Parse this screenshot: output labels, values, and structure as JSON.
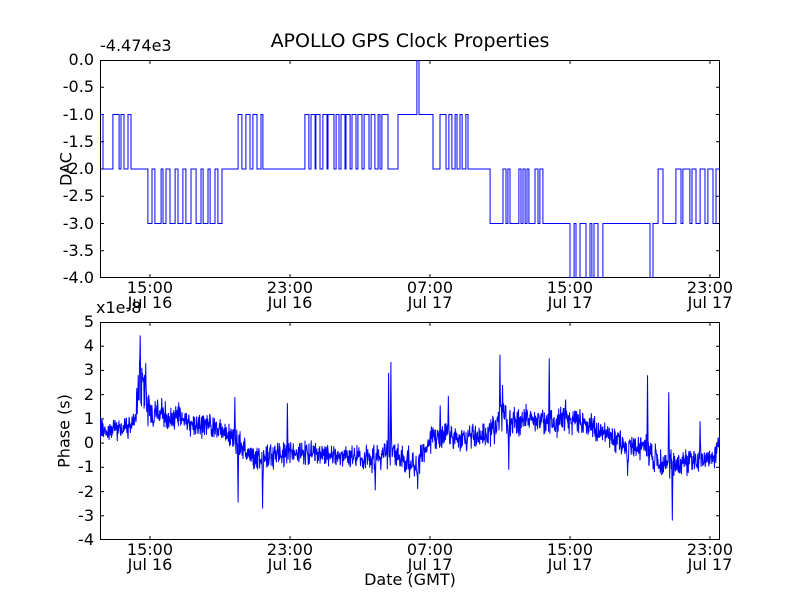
{
  "title": "APOLLO GPS Clock Properties",
  "colors": {
    "line": "#0000ff",
    "axes": "#000000",
    "background": "#ffffff"
  },
  "x_axis": {
    "label": "Date (GMT)",
    "span_hours": 35.43,
    "ticks": [
      {
        "hours": 2.857,
        "time": "15:00",
        "date": "Jul 16"
      },
      {
        "hours": 10.857,
        "time": "23:00",
        "date": "Jul 16"
      },
      {
        "hours": 18.857,
        "time": "07:00",
        "date": "Jul 17"
      },
      {
        "hours": 26.857,
        "time": "15:00",
        "date": "Jul 17"
      },
      {
        "hours": 34.857,
        "time": "23:00",
        "date": "Jul 17"
      }
    ]
  },
  "dac_plot": {
    "ylabel": "DAC",
    "offset_text": "-4.474e3",
    "ylim": [
      -4,
      0
    ],
    "ytick_labels": [
      "0.0",
      "-0.5",
      "-1.0",
      "-1.5",
      "-2.0",
      "-2.5",
      "-3.0",
      "-3.5",
      "-4.0"
    ]
  },
  "phase_plot": {
    "ylabel": "Phase (s)",
    "scale_text": "x1e-8",
    "ylim": [
      -4,
      5
    ],
    "ytick_labels": [
      "5",
      "4",
      "3",
      "2",
      "1",
      "0",
      "-1",
      "-2",
      "-3",
      "-4"
    ],
    "noise_seed": 123457
  },
  "chart_data": [
    {
      "type": "line",
      "series": "DAC",
      "color": "#0000ff",
      "y_offset_label": "-4.474e3",
      "ylim": [
        -4,
        0
      ],
      "x_unit": "hours from plot start (~12:09 Jul 16 GMT)",
      "steps": [
        [
          0,
          -1
        ],
        [
          0.17,
          -2
        ],
        [
          0.74,
          -1
        ],
        [
          1.09,
          -2
        ],
        [
          1.2,
          -1
        ],
        [
          1.37,
          -2
        ],
        [
          1.6,
          -1
        ],
        [
          1.77,
          -2
        ],
        [
          2.74,
          -3
        ],
        [
          2.97,
          -2
        ],
        [
          3.14,
          -3
        ],
        [
          3.49,
          -2
        ],
        [
          3.6,
          -3
        ],
        [
          3.77,
          -2
        ],
        [
          4,
          -3
        ],
        [
          4.29,
          -2
        ],
        [
          4.46,
          -3
        ],
        [
          4.74,
          -2
        ],
        [
          4.91,
          -3
        ],
        [
          5.2,
          -2
        ],
        [
          5.49,
          -3
        ],
        [
          5.77,
          -2
        ],
        [
          5.89,
          -3
        ],
        [
          6.17,
          -2
        ],
        [
          6.29,
          -3
        ],
        [
          6.57,
          -2
        ],
        [
          6.74,
          -3
        ],
        [
          6.97,
          -2
        ],
        [
          7.89,
          -1
        ],
        [
          8.11,
          -2
        ],
        [
          8.34,
          -1
        ],
        [
          8.57,
          -2
        ],
        [
          8.74,
          -1
        ],
        [
          8.97,
          -2
        ],
        [
          9.2,
          -1
        ],
        [
          9.31,
          -2
        ],
        [
          11.71,
          -1
        ],
        [
          11.94,
          -2
        ],
        [
          12.06,
          -1
        ],
        [
          12.29,
          -2
        ],
        [
          12.34,
          -1
        ],
        [
          12.57,
          -2
        ],
        [
          12.74,
          -1
        ],
        [
          12.97,
          -2
        ],
        [
          13.03,
          -1
        ],
        [
          13.37,
          -2
        ],
        [
          13.49,
          -1
        ],
        [
          13.66,
          -2
        ],
        [
          13.77,
          -1
        ],
        [
          14,
          -2
        ],
        [
          14.06,
          -1
        ],
        [
          14.29,
          -2
        ],
        [
          14.4,
          -1
        ],
        [
          14.63,
          -2
        ],
        [
          14.74,
          -1
        ],
        [
          14.97,
          -2
        ],
        [
          15.09,
          -1
        ],
        [
          15.37,
          -2
        ],
        [
          15.49,
          -1
        ],
        [
          15.71,
          -2
        ],
        [
          15.89,
          -1
        ],
        [
          16,
          -2
        ],
        [
          16.11,
          -1
        ],
        [
          16.46,
          -2
        ],
        [
          17.03,
          -1
        ],
        [
          18.11,
          0
        ],
        [
          18.23,
          -1
        ],
        [
          19.03,
          -2
        ],
        [
          19.43,
          -1
        ],
        [
          19.77,
          -2
        ],
        [
          19.94,
          -1
        ],
        [
          20.11,
          -2
        ],
        [
          20.29,
          -1
        ],
        [
          20.4,
          -2
        ],
        [
          20.57,
          -1
        ],
        [
          20.69,
          -2
        ],
        [
          20.91,
          -1
        ],
        [
          21.03,
          -2
        ],
        [
          22.29,
          -3
        ],
        [
          23.03,
          -2
        ],
        [
          23.2,
          -3
        ],
        [
          23.31,
          -2
        ],
        [
          23.43,
          -3
        ],
        [
          23.94,
          -2
        ],
        [
          24.06,
          -3
        ],
        [
          24.17,
          -2
        ],
        [
          24.29,
          -3
        ],
        [
          24.4,
          -2
        ],
        [
          24.51,
          -3
        ],
        [
          24.86,
          -2
        ],
        [
          25.03,
          -3
        ],
        [
          25.14,
          -2
        ],
        [
          25.31,
          -3
        ],
        [
          26.86,
          -4
        ],
        [
          27.09,
          -3
        ],
        [
          27.2,
          -4
        ],
        [
          27.43,
          -3
        ],
        [
          27.77,
          -4
        ],
        [
          28,
          -3
        ],
        [
          28.11,
          -4
        ],
        [
          28.23,
          -3
        ],
        [
          28.46,
          -4
        ],
        [
          28.74,
          -3
        ],
        [
          31.43,
          -4
        ],
        [
          31.6,
          -3
        ],
        [
          31.89,
          -2
        ],
        [
          32.17,
          -3
        ],
        [
          32.91,
          -2
        ],
        [
          33.2,
          -3
        ],
        [
          33.31,
          -2
        ],
        [
          33.71,
          -3
        ],
        [
          33.83,
          -2
        ],
        [
          34.06,
          -3
        ],
        [
          34.29,
          -2
        ],
        [
          34.57,
          -3
        ],
        [
          34.74,
          -2
        ],
        [
          35.03,
          -3
        ],
        [
          35.2,
          -2
        ]
      ]
    },
    {
      "type": "line",
      "series": "Phase (s)",
      "color": "#0000ff",
      "scale": "1e-8",
      "ylim": [
        -4,
        5
      ],
      "x_unit": "hours from plot start (~12:09 Jul 16 GMT)",
      "midline": [
        [
          0.0,
          0.6,
          0.35
        ],
        [
          1.0,
          0.6,
          0.35
        ],
        [
          2.0,
          0.8,
          0.4
        ],
        [
          2.1,
          1.5,
          0.7
        ],
        [
          2.3,
          2.6,
          0.9
        ],
        [
          2.5,
          1.8,
          0.8
        ],
        [
          2.7,
          1.4,
          0.6
        ],
        [
          3.0,
          1.2,
          0.5
        ],
        [
          3.5,
          1.25,
          0.45
        ],
        [
          4.0,
          1.0,
          0.4
        ],
        [
          4.6,
          1.1,
          0.4
        ],
        [
          5.2,
          0.85,
          0.4
        ],
        [
          6.0,
          0.75,
          0.38
        ],
        [
          6.8,
          0.55,
          0.35
        ],
        [
          7.4,
          0.35,
          0.4
        ],
        [
          7.75,
          0.1,
          0.5
        ],
        [
          8.2,
          -0.3,
          0.45
        ],
        [
          8.8,
          -0.55,
          0.4
        ],
        [
          9.3,
          -0.65,
          0.5
        ],
        [
          9.8,
          -0.55,
          0.4
        ],
        [
          10.4,
          -0.5,
          0.38
        ],
        [
          11.2,
          -0.45,
          0.38
        ],
        [
          12.0,
          -0.38,
          0.35
        ],
        [
          13.0,
          -0.48,
          0.35
        ],
        [
          14.0,
          -0.52,
          0.35
        ],
        [
          15.0,
          -0.55,
          0.38
        ],
        [
          15.7,
          -0.7,
          0.45
        ],
        [
          16.2,
          -0.55,
          0.4
        ],
        [
          16.57,
          -0.4,
          0.5
        ],
        [
          17.0,
          -0.55,
          0.4
        ],
        [
          17.6,
          -0.75,
          0.45
        ],
        [
          18.1,
          -0.85,
          0.5
        ],
        [
          18.5,
          -0.35,
          0.45
        ],
        [
          19.0,
          0.3,
          0.45
        ],
        [
          19.5,
          0.35,
          0.4
        ],
        [
          19.9,
          0.3,
          0.45
        ],
        [
          20.5,
          0.2,
          0.4
        ],
        [
          21.2,
          0.28,
          0.38
        ],
        [
          22.0,
          0.35,
          0.42
        ],
        [
          22.6,
          0.7,
          0.5
        ],
        [
          22.9,
          1.0,
          0.6
        ],
        [
          23.3,
          0.95,
          0.5
        ],
        [
          23.8,
          0.9,
          0.45
        ],
        [
          24.4,
          1.0,
          0.45
        ],
        [
          25.0,
          0.95,
          0.42
        ],
        [
          25.7,
          0.9,
          0.5
        ],
        [
          26.2,
          0.85,
          0.45
        ],
        [
          26.6,
          1.1,
          0.45
        ],
        [
          27.2,
          0.85,
          0.4
        ],
        [
          27.8,
          0.75,
          0.4
        ],
        [
          28.4,
          0.55,
          0.38
        ],
        [
          29.0,
          0.3,
          0.38
        ],
        [
          29.6,
          0.1,
          0.38
        ],
        [
          30.1,
          -0.2,
          0.4
        ],
        [
          30.7,
          -0.25,
          0.4
        ],
        [
          31.1,
          -0.05,
          0.45
        ],
        [
          31.45,
          -0.5,
          0.5
        ],
        [
          31.9,
          -0.85,
          0.45
        ],
        [
          32.4,
          -0.75,
          0.5
        ],
        [
          33.0,
          -0.85,
          0.42
        ],
        [
          33.6,
          -0.75,
          0.4
        ],
        [
          34.2,
          -0.7,
          0.4
        ],
        [
          34.8,
          -0.6,
          0.38
        ],
        [
          35.2,
          -0.45,
          0.4
        ],
        [
          35.43,
          0.3,
          0.3
        ]
      ],
      "spikes": [
        [
          2.3,
          4.45
        ],
        [
          2.62,
          3.3
        ],
        [
          7.7,
          1.9
        ],
        [
          7.9,
          -2.45
        ],
        [
          9.3,
          -2.7
        ],
        [
          10.7,
          1.65
        ],
        [
          15.72,
          -1.95
        ],
        [
          16.5,
          2.9
        ],
        [
          16.62,
          3.35
        ],
        [
          18.15,
          -1.9
        ],
        [
          19.45,
          1.55
        ],
        [
          19.9,
          1.95
        ],
        [
          22.85,
          3.65
        ],
        [
          23.0,
          2.4
        ],
        [
          23.35,
          -1.1
        ],
        [
          25.68,
          3.5
        ],
        [
          26.6,
          1.8
        ],
        [
          30.15,
          -1.35
        ],
        [
          31.28,
          2.8
        ],
        [
          32.5,
          2.1
        ],
        [
          32.7,
          -3.2
        ],
        [
          34.3,
          0.9
        ]
      ]
    }
  ]
}
